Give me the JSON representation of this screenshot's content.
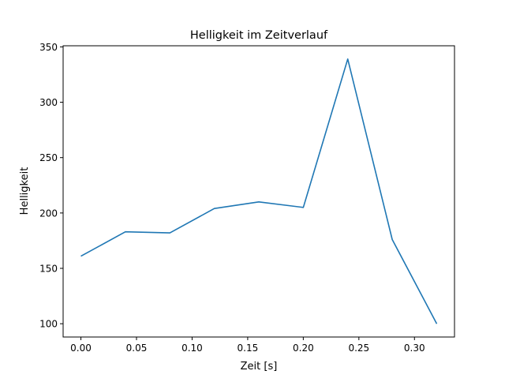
{
  "chart_data": {
    "type": "line",
    "title": "Helligkeit im Zeitverlauf",
    "xlabel": "Zeit [s]",
    "ylabel": "Helligkeit",
    "xlim": [
      -0.016,
      0.336
    ],
    "ylim": [
      88,
      351
    ],
    "xticks": [
      0.0,
      0.05,
      0.1,
      0.15,
      0.2,
      0.25,
      0.3
    ],
    "xtick_labels": [
      "0.00",
      "0.05",
      "0.10",
      "0.15",
      "0.20",
      "0.25",
      "0.30"
    ],
    "yticks": [
      100,
      150,
      200,
      250,
      300,
      350
    ],
    "ytick_labels": [
      "100",
      "150",
      "200",
      "250",
      "300",
      "350"
    ],
    "grid": false,
    "series": [
      {
        "name": "Helligkeit",
        "color": "#1f77b4",
        "x": [
          0.0,
          0.04,
          0.08,
          0.12,
          0.16,
          0.2,
          0.24,
          0.28,
          0.32
        ],
        "y": [
          161,
          183,
          182,
          204,
          210,
          205,
          339,
          176,
          100
        ]
      }
    ]
  }
}
